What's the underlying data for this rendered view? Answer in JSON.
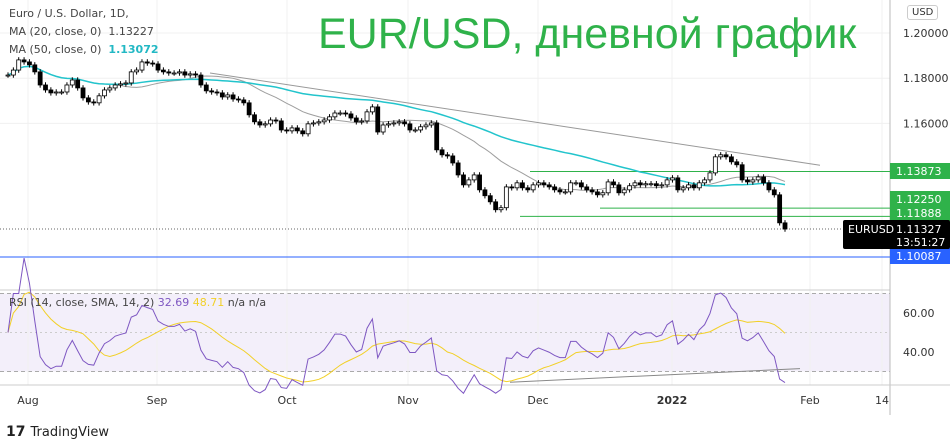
{
  "header": {
    "symbol_line": "Euro / U.S. Dollar, 1D,",
    "ma20_label": "MA (20, close, 0)",
    "ma20_value": "1.13227",
    "ma50_label": "MA (50, close, 0)",
    "ma50_value": "1.13072",
    "overlay_title": "EUR/USD, дневной график",
    "currency_badge": "USD"
  },
  "rsi_legend": {
    "label": "RSI (14, close, SMA, 14, 2)",
    "rsi": "32.69",
    "sma": "48.71",
    "na1": "n/a",
    "na2": "n/a"
  },
  "footer": {
    "brand": "TradingView"
  },
  "colors": {
    "ma20": "#9e9e9e",
    "ma50": "#22c4cc",
    "level": "#2fb24a",
    "support": "#2962ff",
    "rsi": "#7e57c2",
    "rsi_sma": "#f2d028",
    "title": "#2fb24a"
  },
  "chart_data": [
    {
      "type": "candlestick",
      "x_ticks": [
        "Aug",
        "Sep",
        "Oct",
        "Nov",
        "Dec",
        "2022",
        "Feb",
        "14"
      ],
      "y_ticks": [
        "1.20000",
        "1.18000",
        "1.16000"
      ],
      "ylim": [
        1.095,
        1.205
      ],
      "close": [
        1.1814,
        1.1836,
        1.1881,
        1.1872,
        1.1859,
        1.1828,
        1.177,
        1.1748,
        1.1735,
        1.1739,
        1.1739,
        1.177,
        1.1792,
        1.1757,
        1.1713,
        1.1695,
        1.1691,
        1.1722,
        1.1748,
        1.1757,
        1.177,
        1.1775,
        1.1779,
        1.1828,
        1.1836,
        1.1872,
        1.1867,
        1.1863,
        1.1836,
        1.1828,
        1.1823,
        1.1823,
        1.1828,
        1.1814,
        1.1819,
        1.1814,
        1.177,
        1.1744,
        1.1739,
        1.1735,
        1.1717,
        1.1726,
        1.1708,
        1.1704,
        1.1691,
        1.1638,
        1.1607,
        1.1593,
        1.1598,
        1.1615,
        1.1611,
        1.1571,
        1.1567,
        1.158,
        1.1567,
        1.1554,
        1.1598,
        1.1602,
        1.1607,
        1.1615,
        1.1629,
        1.1646,
        1.1646,
        1.1642,
        1.1624,
        1.1607,
        1.1611,
        1.1651,
        1.1673,
        1.1562,
        1.1593,
        1.1598,
        1.1602,
        1.1607,
        1.1598,
        1.1571,
        1.1571,
        1.1585,
        1.1593,
        1.1602,
        1.1483,
        1.1461,
        1.1456,
        1.1425,
        1.1372,
        1.1328,
        1.135,
        1.1372,
        1.1306,
        1.128,
        1.1253,
        1.1218,
        1.1227,
        1.1319,
        1.1315,
        1.1337,
        1.1315,
        1.1306,
        1.1328,
        1.1337,
        1.1328,
        1.1319,
        1.1306,
        1.1297,
        1.1297,
        1.1337,
        1.1337,
        1.1319,
        1.1306,
        1.1297,
        1.1284,
        1.1293,
        1.1341,
        1.1328,
        1.1293,
        1.1306,
        1.1324,
        1.1337,
        1.1328,
        1.1333,
        1.1333,
        1.1324,
        1.1328,
        1.135,
        1.1359,
        1.1306,
        1.1315,
        1.1328,
        1.1315,
        1.1337,
        1.135,
        1.1381,
        1.1452,
        1.1461,
        1.1452,
        1.143,
        1.1417,
        1.135,
        1.1341,
        1.135,
        1.1363,
        1.1337,
        1.1306,
        1.1284,
        1.116,
        1.11327
      ],
      "moving_averages": [
        {
          "name": "MA (20, close, 0)",
          "period": 20
        },
        {
          "name": "MA (50, close, 0)",
          "period": 50
        }
      ],
      "levels": [
        {
          "value": "1.13873",
          "color": "#2fb24a"
        },
        {
          "value": "1.12250",
          "color": "#2fb24a"
        },
        {
          "value": "1.11888",
          "color": "#2fb24a"
        },
        {
          "value": "1.10087",
          "color": "#2962ff"
        }
      ],
      "last_price": {
        "symbol": "EURUSD",
        "value": "1.11327",
        "countdown": "13:51:27"
      },
      "trendline": {
        "from": 1.1823,
        "to": 1.1415
      }
    },
    {
      "type": "line",
      "name": "RSI (14, close, SMA, 14, 2)",
      "y_ticks": [
        "60.00",
        "40.00"
      ],
      "ylim": [
        25,
        75
      ],
      "bands": [
        30,
        70
      ],
      "trendline": {
        "from": 24.5,
        "to": 31.5
      }
    }
  ]
}
